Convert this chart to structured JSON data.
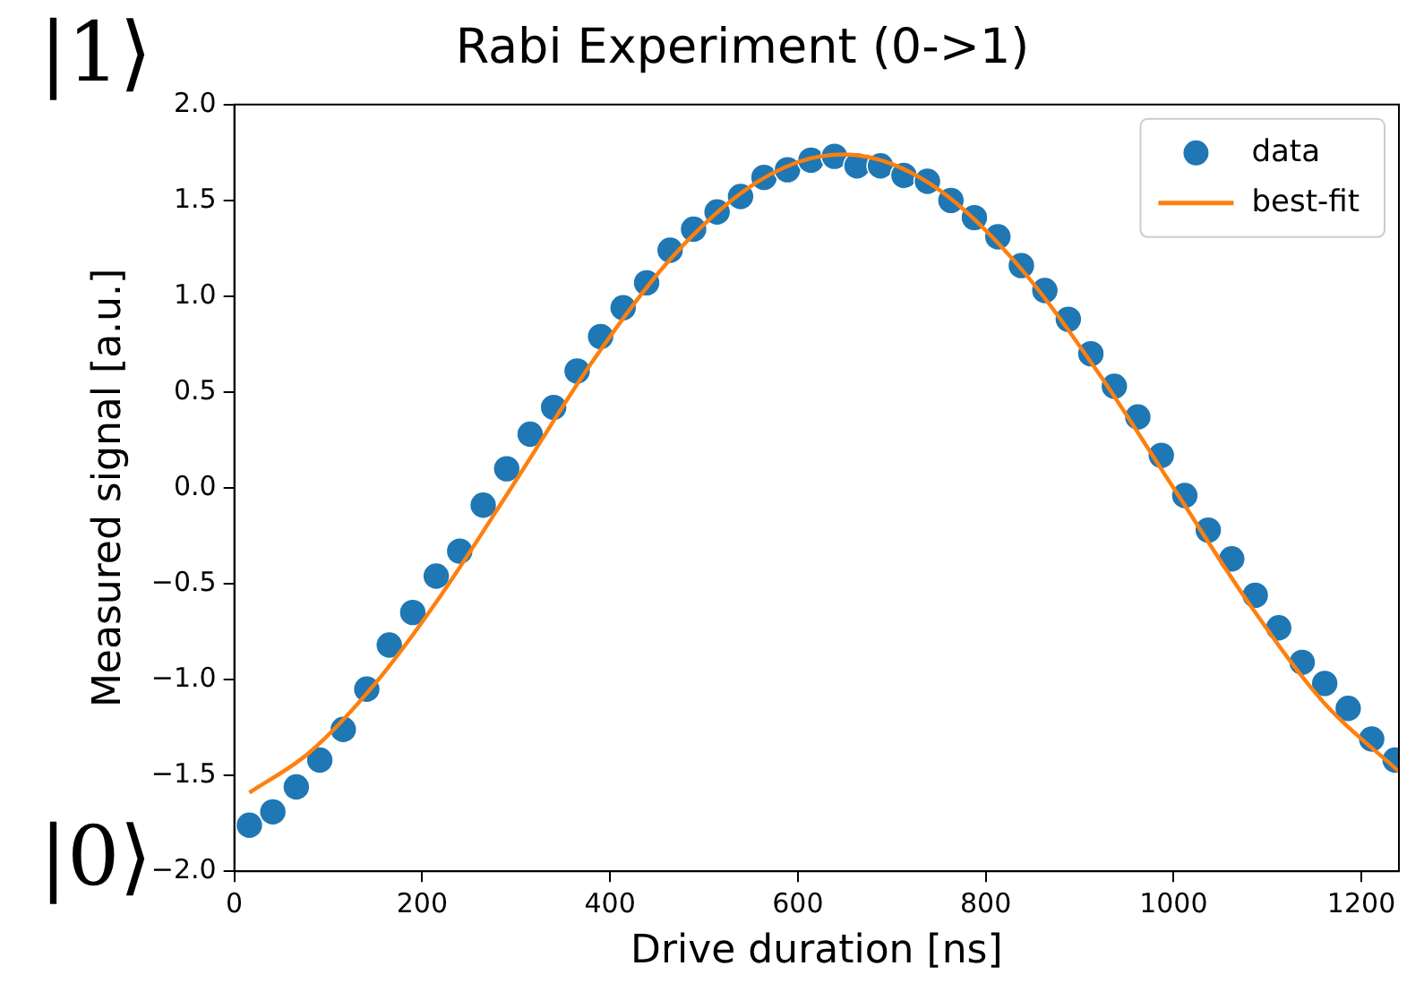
{
  "chart_data": {
    "type": "scatter",
    "title": "Rabi Experiment (0->1)",
    "xlabel": "Drive duration [ns]",
    "ylabel": "Measured signal [a.u.]",
    "annotations": [
      "|1⟩",
      "|0⟩"
    ],
    "xlim": [
      0,
      1240
    ],
    "xticks": [
      0,
      200,
      400,
      600,
      800,
      1000,
      1200
    ],
    "ylim": [
      -2,
      2
    ],
    "yticks": [
      {
        "value": -2,
        "label": "−2.0"
      },
      {
        "value": -1.5,
        "label": "−1.5"
      },
      {
        "value": -1,
        "label": "−1.0"
      },
      {
        "value": -0.5,
        "label": "−0.5"
      },
      {
        "value": 0,
        "label": "0.0"
      },
      {
        "value": 0.5,
        "label": "0.5"
      },
      {
        "value": 1,
        "label": "1.0"
      },
      {
        "value": 1.5,
        "label": "1.5"
      },
      {
        "value": 2,
        "label": "2.0"
      }
    ],
    "grid": false,
    "legend": "top right",
    "series": [
      {
        "name": "data",
        "type": "scatter",
        "marker": "circle",
        "color": "#1f77b4",
        "x": [
          16,
          41,
          66,
          91,
          116,
          141,
          165,
          190,
          215,
          240,
          265,
          290,
          315,
          340,
          365,
          390,
          414,
          439,
          464,
          489,
          514,
          539,
          564,
          589,
          614,
          639,
          663,
          688,
          713,
          738,
          763,
          788,
          813,
          838,
          863,
          888,
          912,
          937,
          962,
          987,
          1012,
          1037,
          1062,
          1087,
          1112,
          1137,
          1161,
          1186,
          1211,
          1236
        ],
        "values": [
          -1.76,
          -1.69,
          -1.56,
          -1.42,
          -1.26,
          -1.05,
          -0.82,
          -0.65,
          -0.46,
          -0.33,
          -0.09,
          0.1,
          0.28,
          0.42,
          0.61,
          0.79,
          0.94,
          1.07,
          1.24,
          1.35,
          1.44,
          1.52,
          1.62,
          1.66,
          1.71,
          1.73,
          1.68,
          1.68,
          1.63,
          1.6,
          1.5,
          1.41,
          1.31,
          1.16,
          1.03,
          0.88,
          0.7,
          0.53,
          0.37,
          0.17,
          -0.04,
          -0.22,
          -0.37,
          -0.56,
          -0.73,
          -0.91,
          -1.02,
          -1.15,
          -1.31,
          -1.42
        ]
      },
      {
        "name": "best-fit",
        "type": "line",
        "marker": "none",
        "line_style": "solid",
        "color": "#ff7f0e",
        "x": [
          16,
          80,
          150,
          220,
          300,
          380,
          460,
          540,
          600,
          650,
          700,
          760,
          840,
          920,
          1000,
          1080,
          1160,
          1240
        ],
        "values": [
          -1.59,
          -1.38,
          -1.02,
          -0.56,
          0.04,
          0.65,
          1.17,
          1.54,
          1.7,
          1.74,
          1.69,
          1.52,
          1.13,
          0.6,
          0.0,
          -0.6,
          -1.12,
          -1.48
        ]
      }
    ]
  }
}
